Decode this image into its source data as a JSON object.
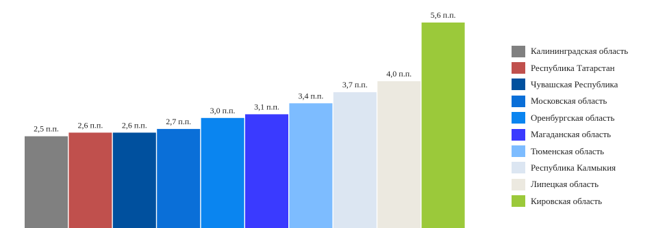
{
  "chart_data": {
    "type": "bar",
    "title": "",
    "xlabel": "",
    "ylabel": "",
    "ylim": [
      0,
      5.6
    ],
    "grid": false,
    "legend_position": "right",
    "categories": [
      "Калининградская область",
      "Республика Татарстан",
      "Чувашская Республика",
      "Московская область",
      "Оренбургская область",
      "Магаданская область",
      "Тюменская область",
      "Республика Калмыкия",
      "Липецкая область",
      "Кировская область"
    ],
    "values": [
      2.5,
      2.6,
      2.6,
      2.7,
      3.0,
      3.1,
      3.4,
      3.7,
      4.0,
      5.6
    ],
    "value_labels": [
      "2,5 п.п.",
      "2,6 п.п.",
      "2,6 п.п.",
      "2,7 п.п.",
      "3,0 п.п.",
      "3,1 п.п.",
      "3,4 п.п.",
      "3,7 п.п.",
      "4,0 п.п.",
      "5,6 п.п."
    ],
    "colors": [
      "#808080",
      "#c0504d",
      "#00509e",
      "#0a6fd8",
      "#0a85f0",
      "#3a3aff",
      "#7dbcff",
      "#dce6f2",
      "#ece9e0",
      "#9bc93a"
    ]
  }
}
